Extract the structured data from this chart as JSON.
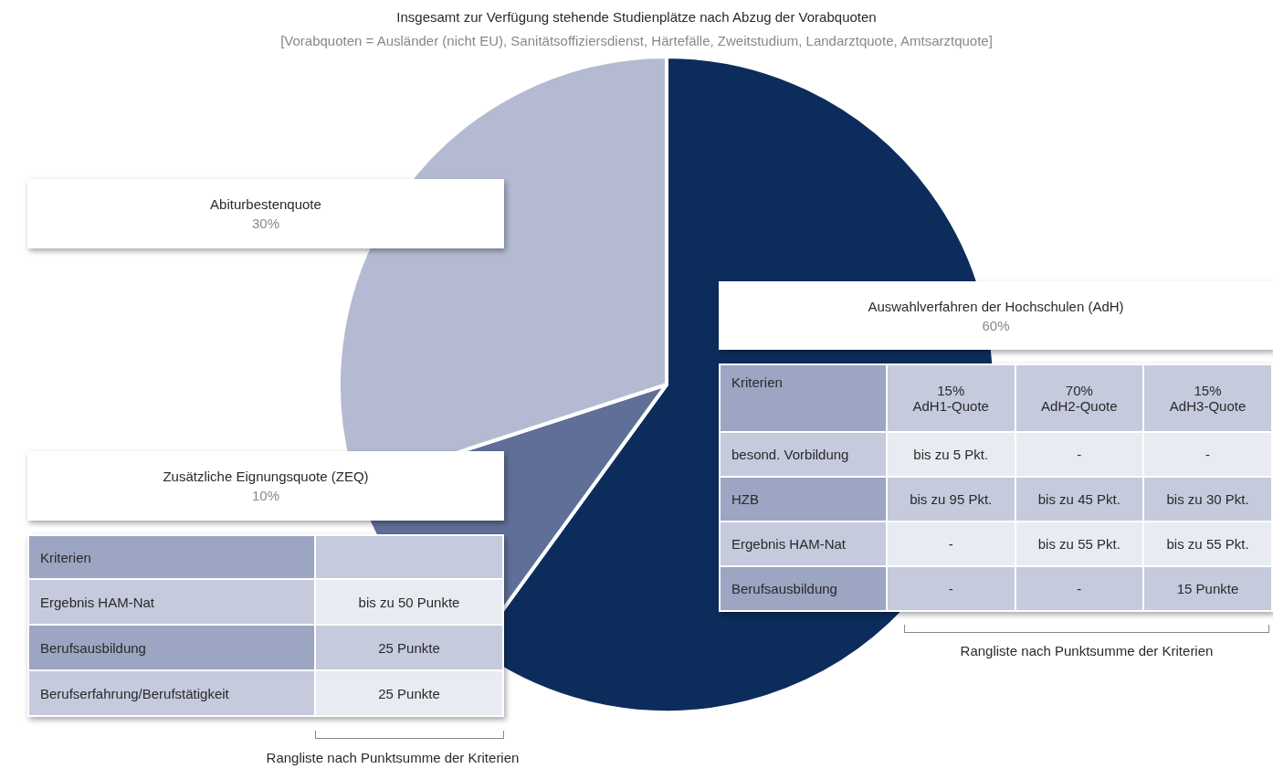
{
  "chart_data": {
    "type": "pie",
    "title": "Insgesamt zur Verfügung stehende Studienplätze nach Abzug der Vorabquoten",
    "subtitle": "[Vorabquoten = Ausländer (nicht EU), Sanitätsoffiziersdienst, Härtefälle, Zweitstudium, Landarztquote, Amtsarztquote]",
    "categories": [
      "Auswahlverfahren  der Hochschulen (AdH)",
      "Zusätzliche Eignungsquote (ZEQ)",
      "Abiturbestenquote"
    ],
    "values": [
      60,
      10,
      30
    ],
    "value_labels": [
      "60%",
      "10%",
      "30%"
    ],
    "colors": [
      "#0c2d5c",
      "#5f6f98",
      "#b4bad2"
    ],
    "legend": false,
    "annotations": [
      "Kriterien",
      "Ergebnis HAM-Nat",
      "bis zu 50 Punkte",
      "Berufsausbildung",
      "25 Punkte",
      "Berufserfahrung/Berufstätigkeit",
      "25 Punkte",
      "Rangliste nach Punktsumme der Kriterien",
      "Kriterien",
      "15%\nAdH1-Quote",
      "70%\nAdH2-Quote",
      "15%\nAdH3-Quote",
      "besond. Vorbildung",
      "bis zu 5 Pkt.",
      "-",
      "-",
      "HZB",
      "bis zu 95 Pkt.",
      "bis zu 45 Pkt.",
      "bis zu 30 Pkt.",
      "Ergebnis HAM-Nat",
      "-",
      "bis zu 55 Pkt.",
      "bis zu 55 Pkt.",
      "Berufsausbildung",
      "-",
      "-",
      "15 Punkte",
      "Rangliste nach Punktsumme der Kriterien"
    ]
  }
}
